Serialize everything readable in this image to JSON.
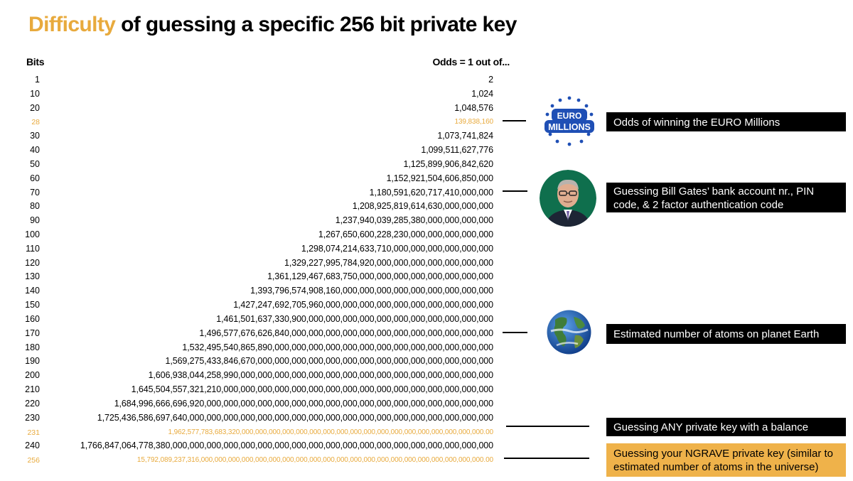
{
  "title": {
    "accent": "Difficulty",
    "rest": " of guessing a specific 256 bit private key"
  },
  "headers": {
    "bits": "Bits",
    "odds": "Odds = 1 out of..."
  },
  "colors": {
    "accent": "#e8aa3d",
    "label_bg": "#000000",
    "label_gold_bg": "#efb24a"
  },
  "chart_data": {
    "type": "table",
    "title": "Difficulty of guessing a specific 256 bit private key",
    "columns": [
      "Bits",
      "Odds = 1 out of..."
    ],
    "rows": [
      {
        "bits": "1",
        "odds": "2",
        "highlight": false
      },
      {
        "bits": "10",
        "odds": "1,024",
        "highlight": false
      },
      {
        "bits": "20",
        "odds": "1,048,576",
        "highlight": false
      },
      {
        "bits": "28",
        "odds": "139,838,160",
        "highlight": true
      },
      {
        "bits": "30",
        "odds": "1,073,741,824",
        "highlight": false
      },
      {
        "bits": "40",
        "odds": "1,099,511,627,776",
        "highlight": false
      },
      {
        "bits": "50",
        "odds": "1,125,899,906,842,620",
        "highlight": false
      },
      {
        "bits": "60",
        "odds": "1,152,921,504,606,850,000",
        "highlight": false
      },
      {
        "bits": "70",
        "odds": "1,180,591,620,717,410,000,000",
        "highlight": false
      },
      {
        "bits": "80",
        "odds": "1,208,925,819,614,630,000,000,000",
        "highlight": false
      },
      {
        "bits": "90",
        "odds": "1,237,940,039,285,380,000,000,000,000",
        "highlight": false
      },
      {
        "bits": "100",
        "odds": "1,267,650,600,228,230,000,000,000,000,000",
        "highlight": false
      },
      {
        "bits": "110",
        "odds": "1,298,074,214,633,710,000,000,000,000,000,000",
        "highlight": false
      },
      {
        "bits": "120",
        "odds": "1,329,227,995,784,920,000,000,000,000,000,000,000",
        "highlight": false
      },
      {
        "bits": "130",
        "odds": "1,361,129,467,683,750,000,000,000,000,000,000,000,000",
        "highlight": false
      },
      {
        "bits": "140",
        "odds": "1,393,796,574,908,160,000,000,000,000,000,000,000,000,000",
        "highlight": false
      },
      {
        "bits": "150",
        "odds": "1,427,247,692,705,960,000,000,000,000,000,000,000,000,000,000",
        "highlight": false
      },
      {
        "bits": "160",
        "odds": "1,461,501,637,330,900,000,000,000,000,000,000,000,000,000,000,000",
        "highlight": false
      },
      {
        "bits": "170",
        "odds": "1,496,577,676,626,840,000,000,000,000,000,000,000,000,000,000,000,000",
        "highlight": false
      },
      {
        "bits": "180",
        "odds": "1,532,495,540,865,890,000,000,000,000,000,000,000,000,000,000,000,000,000",
        "highlight": false
      },
      {
        "bits": "190",
        "odds": "1,569,275,433,846,670,000,000,000,000,000,000,000,000,000,000,000,000,000,000",
        "highlight": false
      },
      {
        "bits": "200",
        "odds": "1,606,938,044,258,990,000,000,000,000,000,000,000,000,000,000,000,000,000,000,000",
        "highlight": false
      },
      {
        "bits": "210",
        "odds": "1,645,504,557,321,210,000,000,000,000,000,000,000,000,000,000,000,000,000,000,000,000",
        "highlight": false
      },
      {
        "bits": "220",
        "odds": "1,684,996,666,696,920,000,000,000,000,000,000,000,000,000,000,000,000,000,000,000,000,000",
        "highlight": false
      },
      {
        "bits": "230",
        "odds": "1,725,436,586,697,640,000,000,000,000,000,000,000,000,000,000,000,000,000,000,000,000,000,000",
        "highlight": false
      },
      {
        "bits": "231",
        "odds": "1,962,577,783,683,320,000,000,000,000,000,000,000,000,000,000,000,000,000,000,000,000,000,000.00",
        "highlight": true
      },
      {
        "bits": "240",
        "odds": "1,766,847,064,778,380,000,000,000,000,000,000,000,000,000,000,000,000,000,000,000,000,000,000,000",
        "highlight": false
      },
      {
        "bits": "256",
        "odds": "15,792,089,237,316,000,000,000,000,000,000,000,000,000,000,000,000,000,000,000,000,000,000,000,000,000.00",
        "highlight": true
      }
    ],
    "annotations": [
      {
        "bits": "28",
        "text": "Odds of winning the EURO Millions",
        "icon": "euro-millions-logo"
      },
      {
        "bits": "70",
        "text": "Guessing Bill Gates’ bank account nr., PIN code, & 2 factor authentication code",
        "icon": "person-portrait"
      },
      {
        "bits": "170",
        "text": "Estimated number of atoms on planet Earth",
        "icon": "earth-globe"
      },
      {
        "bits": "231",
        "text": "Guessing ANY private key with a balance",
        "icon": ""
      },
      {
        "bits": "256",
        "text": "Guessing your NGRAVE private key (similar to estimated number of atoms in the universe)",
        "icon": ""
      }
    ]
  },
  "logo": {
    "line1": "EURO",
    "line2": "MILLIONS"
  }
}
